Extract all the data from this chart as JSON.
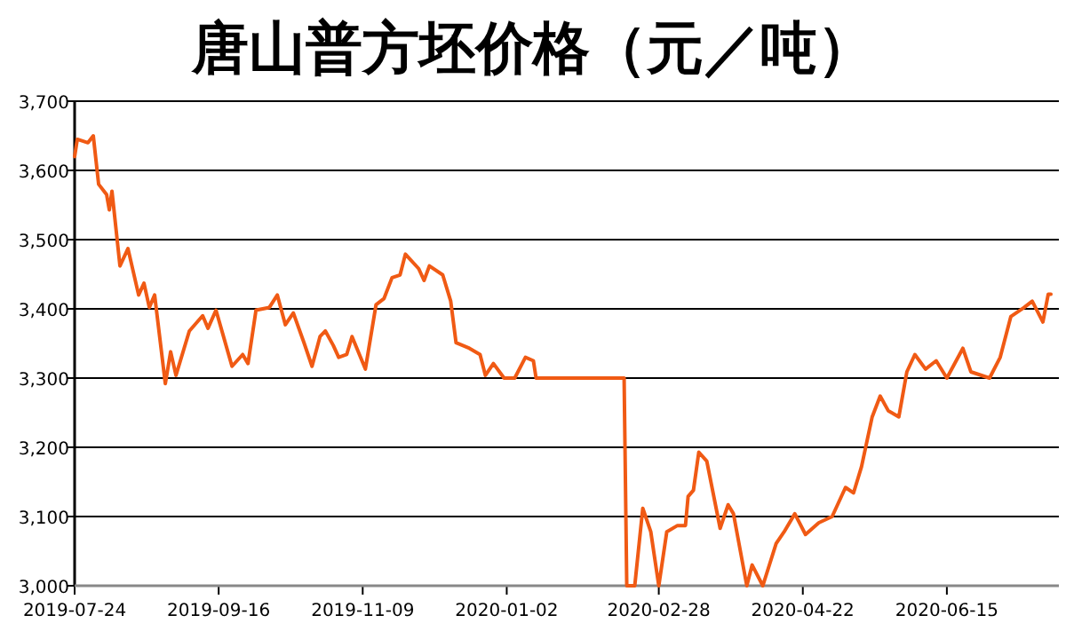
{
  "chart_data": {
    "type": "line",
    "title": "唐山普方坯价格（元／吨）",
    "xlim": [
      "2019-07-24",
      "2020-07-27"
    ],
    "xticks": [
      "2019-07-24",
      "2019-09-16",
      "2019-11-09",
      "2020-01-02",
      "2020-02-28",
      "2020-04-22",
      "2020-06-15"
    ],
    "ylim": [
      3000,
      3700
    ],
    "yticks": [
      {
        "value": 3000,
        "label": "3,000"
      },
      {
        "value": 3100,
        "label": "3,100"
      },
      {
        "value": 3200,
        "label": "3,200"
      },
      {
        "value": 3300,
        "label": "3,300"
      },
      {
        "value": 3400,
        "label": "3,400"
      },
      {
        "value": 3500,
        "label": "3,500"
      },
      {
        "value": 3600,
        "label": "3,600"
      },
      {
        "value": 3700,
        "label": "3,700"
      }
    ],
    "grid": "y",
    "marker": "none",
    "line_style": "solid",
    "series": [
      {
        "color": "#f05a14",
        "x": [
          "2019-07-24",
          "2019-07-25",
          "2019-07-29",
          "2019-07-31",
          "2019-08-02",
          "2019-08-05",
          "2019-08-06",
          "2019-08-07",
          "2019-08-10",
          "2019-08-13",
          "2019-08-17",
          "2019-08-19",
          "2019-08-21",
          "2019-08-23",
          "2019-08-27",
          "2019-08-29",
          "2019-08-31",
          "2019-09-05",
          "2019-09-10",
          "2019-09-12",
          "2019-09-15",
          "2019-09-21",
          "2019-09-25",
          "2019-09-27",
          "2019-09-30",
          "2019-10-05",
          "2019-10-08",
          "2019-10-11",
          "2019-10-14",
          "2019-10-18",
          "2019-10-21",
          "2019-10-24",
          "2019-10-26",
          "2019-10-29",
          "2019-10-31",
          "2019-11-03",
          "2019-11-05",
          "2019-11-10",
          "2019-11-14",
          "2019-11-17",
          "2019-11-20",
          "2019-11-23",
          "2019-11-25",
          "2019-11-30",
          "2019-12-02",
          "2019-12-04",
          "2019-12-09",
          "2019-12-12",
          "2019-12-14",
          "2019-12-19",
          "2019-12-23",
          "2019-12-25",
          "2019-12-28",
          "2020-01-01",
          "2020-01-05",
          "2020-01-09",
          "2020-01-12",
          "2020-01-13",
          "2020-02-15",
          "2020-02-16",
          "2020-02-19",
          "2020-02-22",
          "2020-02-25",
          "2020-02-28",
          "2020-03-02",
          "2020-03-06",
          "2020-03-09",
          "2020-03-10",
          "2020-03-12",
          "2020-03-14",
          "2020-03-17",
          "2020-03-22",
          "2020-03-25",
          "2020-03-27",
          "2020-04-01",
          "2020-04-03",
          "2020-04-07",
          "2020-04-12",
          "2020-04-15",
          "2020-04-19",
          "2020-04-23",
          "2020-04-28",
          "2020-05-03",
          "2020-05-08",
          "2020-05-11",
          "2020-05-14",
          "2020-05-18",
          "2020-05-21",
          "2020-05-24",
          "2020-05-28",
          "2020-05-31",
          "2020-06-03",
          "2020-06-07",
          "2020-06-11",
          "2020-06-15",
          "2020-06-21",
          "2020-06-24",
          "2020-07-01",
          "2020-07-05",
          "2020-07-09",
          "2020-07-14",
          "2020-07-17",
          "2020-07-21",
          "2020-07-23",
          "2020-07-24"
        ],
        "values": [
          3620,
          3645,
          3640,
          3650,
          3580,
          3565,
          3543,
          3570,
          3462,
          3487,
          3420,
          3437,
          3402,
          3420,
          3292,
          3338,
          3304,
          3368,
          3390,
          3372,
          3398,
          3317,
          3334,
          3321,
          3398,
          3402,
          3420,
          3377,
          3394,
          3351,
          3317,
          3360,
          3368,
          3347,
          3330,
          3334,
          3360,
          3313,
          3406,
          3415,
          3445,
          3449,
          3479,
          3458,
          3441,
          3462,
          3449,
          3411,
          3351,
          3343,
          3334,
          3304,
          3321,
          3300,
          3300,
          3330,
          3325,
          3300,
          3300,
          3000,
          3000,
          3112,
          3078,
          3000,
          3078,
          3087,
          3087,
          3129,
          3138,
          3193,
          3180,
          3083,
          3117,
          3104,
          3000,
          3030,
          3000,
          3061,
          3078,
          3104,
          3074,
          3091,
          3100,
          3142,
          3134,
          3172,
          3244,
          3274,
          3253,
          3244,
          3309,
          3334,
          3313,
          3325,
          3300,
          3343,
          3309,
          3300,
          3330,
          3389,
          3402,
          3411,
          3381,
          3421,
          3421
        ]
      }
    ]
  }
}
